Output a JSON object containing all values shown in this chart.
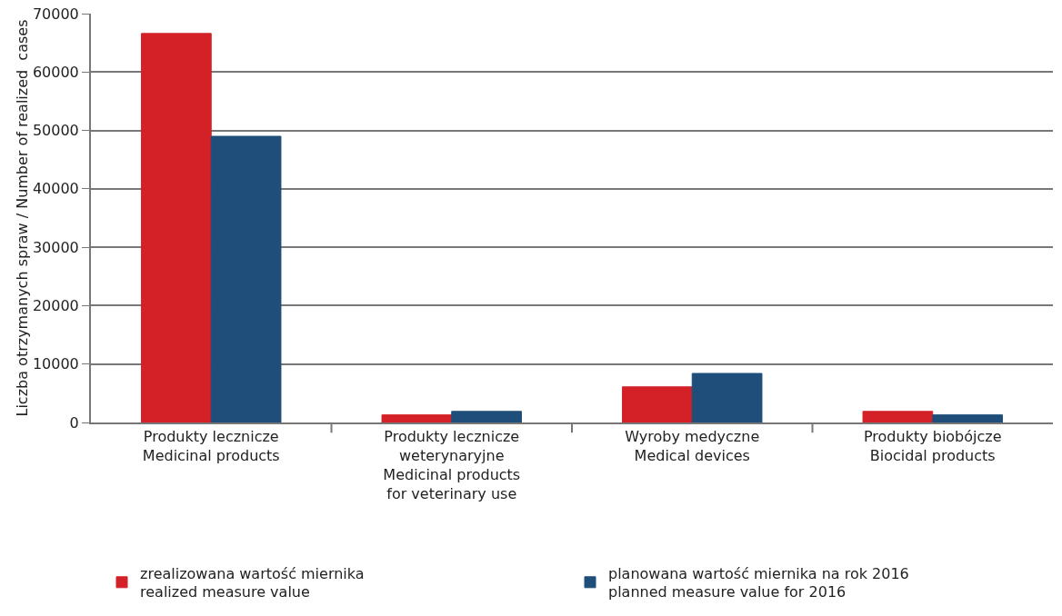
{
  "chart_data": {
    "type": "bar",
    "ylabel": "Liczba otrzymanych spraw / Number of realized  cases",
    "categories": [
      "Produkty lecznicze\nMedicinal products",
      "Produkty lecznicze\nweterynaryjne\nMedicinal products\nfor veterinary use",
      "Wyroby medyczne\nMedical devices",
      "Produkty biobójcze\nBiocidal products"
    ],
    "series": [
      {
        "name": "zrealizowana wartość miernika\nrealized measure value",
        "color": "#d42027",
        "values": [
          66600,
          1300,
          6100,
          1900
        ]
      },
      {
        "name": "planowana wartość miernika na rok 2016\nplanned measure value for 2016",
        "color": "#1f4e7a",
        "values": [
          49000,
          1900,
          8400,
          1300
        ]
      }
    ],
    "ylim": [
      0,
      70000
    ],
    "yticks": [
      0,
      10000,
      20000,
      30000,
      40000,
      50000,
      60000,
      70000
    ],
    "grid": "y",
    "legend": "bottom"
  }
}
